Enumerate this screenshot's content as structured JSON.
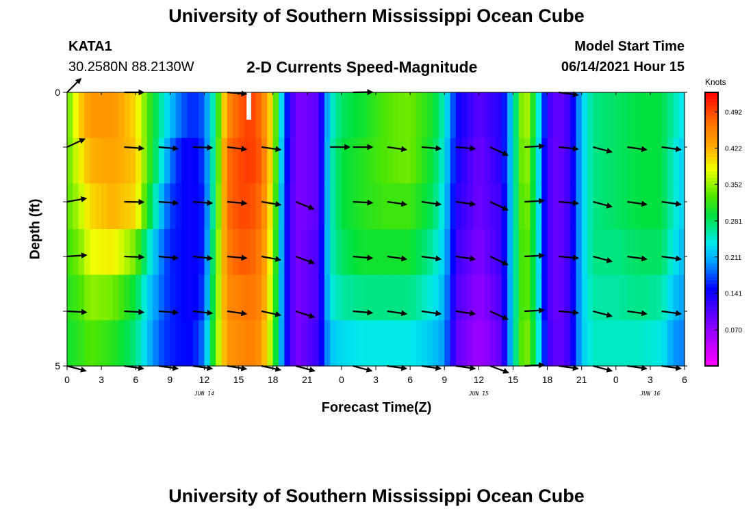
{
  "page": {
    "title_top": "University of Southern Mississippi Ocean Cube",
    "title_bottom": "University of Southern Mississippi Ocean Cube",
    "station_id": "KATA1",
    "station_coords": "30.2580N  88.2130W",
    "chart_title": "2-D Currents Speed-Magnitude",
    "model_start_label": "Model Start Time",
    "model_start_value": "06/14/2021 Hour 15"
  },
  "chart_data": {
    "type": "heatmap",
    "title": "2-D Currents Speed-Magnitude",
    "xlabel": "Forecast Time(Z)",
    "ylabel": "Depth (ft)",
    "x_tick_labels": [
      "0",
      "3",
      "6",
      "9",
      "12",
      "15",
      "18",
      "21",
      "0",
      "3",
      "6",
      "9",
      "12",
      "15",
      "18",
      "21",
      "0",
      "3",
      "6"
    ],
    "date_labels": [
      {
        "text": "JUN 14",
        "hour": 12
      },
      {
        "text": "JUN 15",
        "hour": 36
      },
      {
        "text": "JUN 16",
        "hour": 51
      }
    ],
    "x_range_hours": [
      0,
      54
    ],
    "y_range_ft": [
      0,
      5
    ],
    "y_tick_labels": [
      "0",
      "5"
    ],
    "colorbar": {
      "units": "Knots",
      "range": [
        0,
        0.53
      ],
      "tick_labels": [
        "0.492",
        "0.422",
        "0.352",
        "0.281",
        "0.211",
        "0.141",
        "0.070"
      ],
      "tick_values": [
        0.492,
        0.422,
        0.352,
        0.281,
        0.211,
        0.141,
        0.07
      ]
    },
    "knots": [
      {
        "t": 0,
        "v": [
          0.33,
          0.33,
          0.33,
          0.32,
          0.31,
          0.3
        ]
      },
      {
        "t": 1,
        "v": [
          0.4,
          0.38,
          0.36,
          0.34,
          0.32,
          0.31
        ]
      },
      {
        "t": 2,
        "v": [
          0.44,
          0.42,
          0.4,
          0.38,
          0.35,
          0.33
        ]
      },
      {
        "t": 4,
        "v": [
          0.44,
          0.43,
          0.42,
          0.39,
          0.34,
          0.31
        ]
      },
      {
        "t": 6,
        "v": [
          0.4,
          0.41,
          0.4,
          0.34,
          0.29,
          0.27
        ]
      },
      {
        "t": 7,
        "v": [
          0.33,
          0.33,
          0.31,
          0.26,
          0.23,
          0.22
        ]
      },
      {
        "t": 8,
        "v": [
          0.27,
          0.26,
          0.23,
          0.2,
          0.19,
          0.18
        ]
      },
      {
        "t": 9,
        "v": [
          0.22,
          0.19,
          0.17,
          0.16,
          0.16,
          0.16
        ]
      },
      {
        "t": 10,
        "v": [
          0.18,
          0.15,
          0.15,
          0.15,
          0.15,
          0.15
        ]
      },
      {
        "t": 11,
        "v": [
          0.16,
          0.14,
          0.14,
          0.14,
          0.14,
          0.15
        ]
      },
      {
        "t": 12,
        "v": [
          0.18,
          0.17,
          0.16,
          0.16,
          0.17,
          0.19
        ]
      },
      {
        "t": 13,
        "v": [
          0.28,
          0.29,
          0.3,
          0.32,
          0.33,
          0.34
        ]
      },
      {
        "t": 14,
        "v": [
          0.45,
          0.47,
          0.47,
          0.46,
          0.45,
          0.44
        ]
      },
      {
        "t": 15,
        "v": [
          0.48,
          0.49,
          0.49,
          0.48,
          0.46,
          0.45
        ]
      },
      {
        "t": 16,
        "v": [
          0.5,
          0.5,
          0.49,
          0.48,
          0.47,
          0.46
        ]
      },
      {
        "t": 17,
        "v": [
          0.47,
          0.48,
          0.47,
          0.46,
          0.45,
          0.44
        ]
      },
      {
        "t": 18,
        "v": [
          0.38,
          0.38,
          0.37,
          0.36,
          0.35,
          0.34
        ]
      },
      {
        "t": 19,
        "v": [
          0.18,
          0.17,
          0.16,
          0.16,
          0.16,
          0.16
        ]
      },
      {
        "t": 20,
        "v": [
          0.08,
          0.08,
          0.08,
          0.08,
          0.08,
          0.08
        ]
      },
      {
        "t": 22,
        "v": [
          0.1,
          0.1,
          0.1,
          0.11,
          0.11,
          0.12
        ]
      },
      {
        "t": 23,
        "v": [
          0.24,
          0.25,
          0.25,
          0.25,
          0.24,
          0.22
        ]
      },
      {
        "t": 24,
        "v": [
          0.28,
          0.29,
          0.29,
          0.28,
          0.26,
          0.23
        ]
      },
      {
        "t": 26,
        "v": [
          0.3,
          0.31,
          0.31,
          0.3,
          0.27,
          0.24
        ]
      },
      {
        "t": 28,
        "v": [
          0.33,
          0.33,
          0.32,
          0.3,
          0.27,
          0.24
        ]
      },
      {
        "t": 30,
        "v": [
          0.34,
          0.34,
          0.32,
          0.3,
          0.27,
          0.24
        ]
      },
      {
        "t": 32,
        "v": [
          0.3,
          0.29,
          0.28,
          0.26,
          0.24,
          0.22
        ]
      },
      {
        "t": 33,
        "v": [
          0.25,
          0.24,
          0.23,
          0.22,
          0.21,
          0.2
        ]
      },
      {
        "t": 34,
        "v": [
          0.15,
          0.14,
          0.13,
          0.12,
          0.11,
          0.1
        ]
      },
      {
        "t": 36,
        "v": [
          0.1,
          0.09,
          0.09,
          0.08,
          0.07,
          0.06
        ]
      },
      {
        "t": 38,
        "v": [
          0.13,
          0.13,
          0.12,
          0.12,
          0.11,
          0.1
        ]
      },
      {
        "t": 39,
        "v": [
          0.24,
          0.24,
          0.24,
          0.24,
          0.24,
          0.24
        ]
      },
      {
        "t": 40,
        "v": [
          0.38,
          0.37,
          0.36,
          0.35,
          0.35,
          0.36
        ]
      },
      {
        "t": 41,
        "v": [
          0.28,
          0.27,
          0.27,
          0.27,
          0.27,
          0.28
        ]
      },
      {
        "t": 42,
        "v": [
          0.12,
          0.11,
          0.11,
          0.11,
          0.11,
          0.12
        ]
      },
      {
        "t": 43,
        "v": [
          0.09,
          0.09,
          0.09,
          0.09,
          0.09,
          0.09
        ]
      },
      {
        "t": 44,
        "v": [
          0.12,
          0.12,
          0.12,
          0.12,
          0.12,
          0.12
        ]
      },
      {
        "t": 45,
        "v": [
          0.22,
          0.22,
          0.22,
          0.22,
          0.22,
          0.22
        ]
      },
      {
        "t": 46,
        "v": [
          0.27,
          0.27,
          0.27,
          0.27,
          0.26,
          0.25
        ]
      },
      {
        "t": 48,
        "v": [
          0.28,
          0.28,
          0.28,
          0.27,
          0.26,
          0.25
        ]
      },
      {
        "t": 50,
        "v": [
          0.29,
          0.29,
          0.29,
          0.28,
          0.27,
          0.25
        ]
      },
      {
        "t": 52,
        "v": [
          0.29,
          0.29,
          0.29,
          0.28,
          0.26,
          0.24
        ]
      },
      {
        "t": 53,
        "v": [
          0.26,
          0.25,
          0.25,
          0.24,
          0.22,
          0.2
        ]
      },
      {
        "t": 54,
        "v": [
          0.23,
          0.22,
          0.22,
          0.21,
          0.2,
          0.19
        ]
      }
    ],
    "missing_data": [
      {
        "t_start": 15.7,
        "t_end": 16.1,
        "depth_start": 0,
        "depth_end": 0.5
      }
    ],
    "arrow_depths_ft": [
      0,
      1,
      2,
      3,
      4,
      5
    ],
    "arrow_times_hours": [
      0,
      5,
      8,
      11,
      14,
      17,
      20,
      23,
      25,
      28,
      31,
      34,
      37,
      40,
      43,
      46,
      49,
      52
    ],
    "arrow_dir_deg": [
      [
        -45,
        0,
        null,
        null,
        5,
        null,
        null,
        null,
        -1,
        null,
        null,
        null,
        null,
        null,
        8,
        null,
        null,
        null
      ],
      [
        -25,
        4,
        5,
        2,
        7,
        8,
        null,
        0,
        0,
        8,
        5,
        5,
        25,
        -3,
        6,
        15,
        8,
        8
      ],
      [
        -10,
        1,
        4,
        4,
        5,
        9,
        22,
        null,
        3,
        8,
        8,
        8,
        25,
        -3,
        5,
        15,
        8,
        8
      ],
      [
        -4,
        2,
        5,
        6,
        5,
        10,
        20,
        null,
        5,
        8,
        8,
        8,
        25,
        -3,
        5,
        15,
        8,
        8
      ],
      [
        3,
        3,
        4,
        6,
        8,
        12,
        18,
        null,
        5,
        8,
        8,
        8,
        25,
        -3,
        5,
        15,
        8,
        8
      ],
      [
        15,
        8,
        8,
        8,
        9,
        12,
        15,
        null,
        15,
        8,
        8,
        8,
        20,
        -3,
        8,
        15,
        8,
        8
      ]
    ]
  }
}
